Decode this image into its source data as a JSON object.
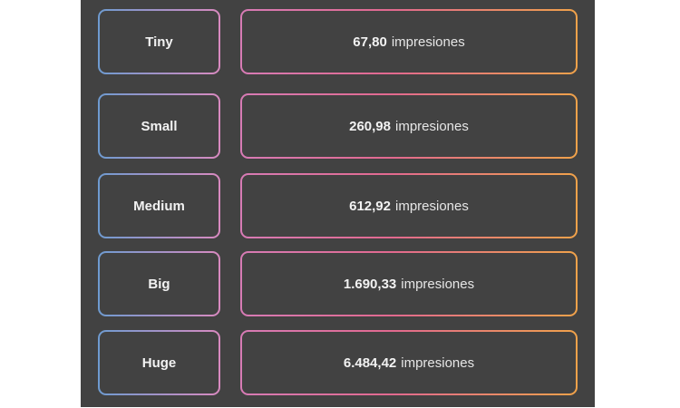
{
  "unit_label": "impresiones",
  "rows": [
    {
      "label": "Tiny",
      "value": "67,80"
    },
    {
      "label": "Small",
      "value": "260,98"
    },
    {
      "label": "Medium",
      "value": "612,92"
    },
    {
      "label": "Big",
      "value": "1.690,33"
    },
    {
      "label": "Huge",
      "value": "6.484,42"
    }
  ],
  "colors": {
    "panel_bg": "#424242",
    "text": "#f2f2f2",
    "label_border_gradient": [
      "#6e9bd0",
      "#d98ac0"
    ],
    "value_border_gradient": [
      "#d77bb5",
      "#e2698f",
      "#f0a24a"
    ]
  }
}
